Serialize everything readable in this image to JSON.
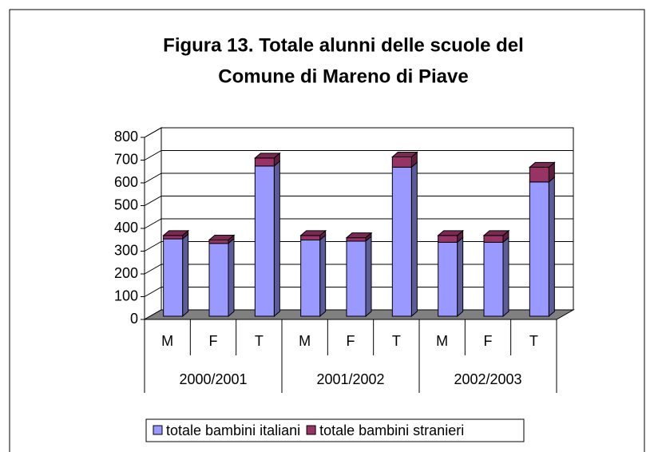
{
  "chart_data": {
    "type": "bar3d_stacked",
    "title": [
      "Figura 13. Totale alunni delle scuole del",
      "Comune di Mareno di Piave"
    ],
    "categories": [
      "M",
      "F",
      "T",
      "M",
      "F",
      "T",
      "M",
      "F",
      "T"
    ],
    "groups": [
      "2000/2001",
      "2001/2002",
      "2002/2003"
    ],
    "series": [
      {
        "name": "totale bambini italiani",
        "color": "#9999ff",
        "values": [
          340,
          320,
          660,
          335,
          330,
          655,
          325,
          325,
          590
        ]
      },
      {
        "name": "totale bambini stranieri",
        "color": "#993366",
        "values": [
          15,
          15,
          35,
          20,
          15,
          45,
          30,
          30,
          65
        ]
      }
    ],
    "ylim": [
      0,
      800
    ],
    "yticks": [
      0,
      100,
      200,
      300,
      400,
      500,
      600,
      700,
      800
    ],
    "grid": true
  }
}
